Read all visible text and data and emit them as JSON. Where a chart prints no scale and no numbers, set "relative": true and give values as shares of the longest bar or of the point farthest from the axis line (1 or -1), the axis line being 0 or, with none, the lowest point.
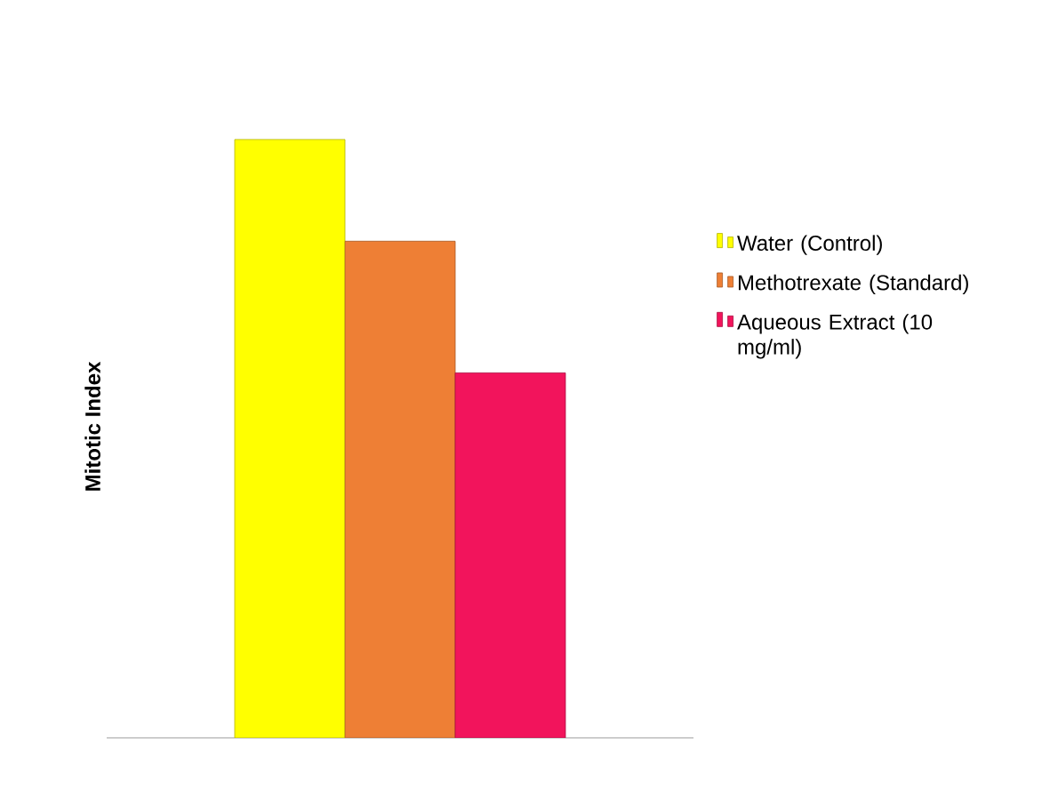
{
  "chart_data": {
    "type": "bar",
    "ylabel": "Mitotic Index",
    "relative": true,
    "legend": "top right",
    "categories": [
      null
    ],
    "series": [
      {
        "name": "Water (Control)",
        "color": "#ffff00",
        "values": [
          1
        ]
      },
      {
        "name": "Methotrexate (Standard)",
        "color": "#ee7f35",
        "values": [
          0.83
        ]
      },
      {
        "name": "Aqueous Extract (10 mg/ml)",
        "color": "#f2145c",
        "values": [
          0.61
        ]
      }
    ]
  }
}
